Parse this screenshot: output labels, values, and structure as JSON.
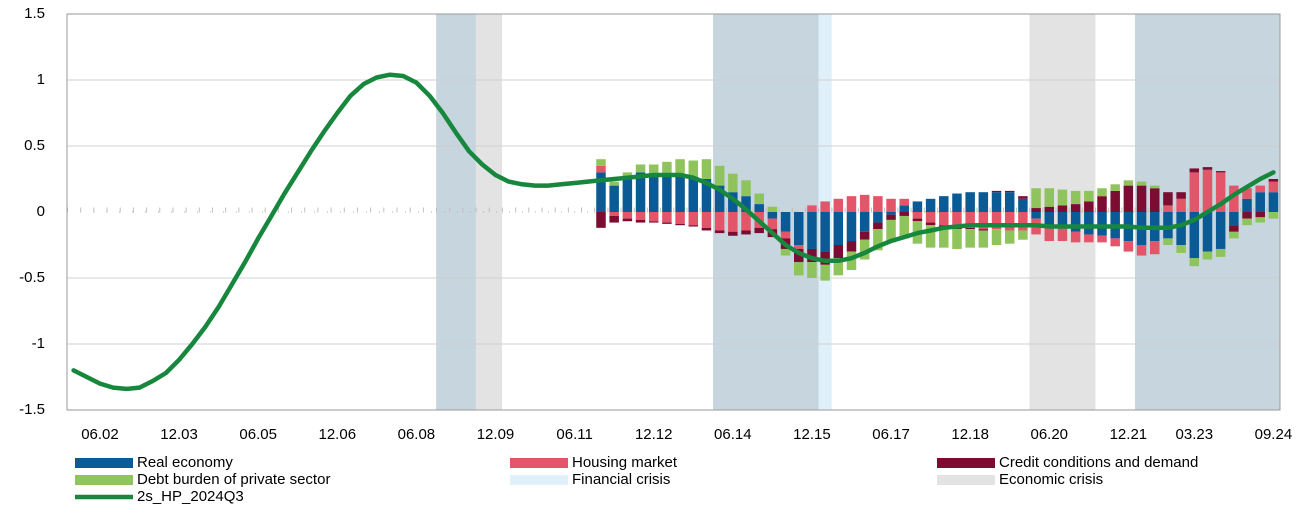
{
  "chart_data": {
    "type": "stacked-bar-line",
    "categories": [
      null,
      null,
      "06.02",
      null,
      null,
      null,
      null,
      null,
      "12.03",
      null,
      null,
      null,
      null,
      null,
      "06.05",
      null,
      null,
      null,
      null,
      null,
      "12.06",
      null,
      null,
      null,
      null,
      null,
      "06.08",
      null,
      null,
      null,
      null,
      null,
      "12.09",
      null,
      null,
      null,
      null,
      null,
      "06.11",
      null,
      null,
      null,
      null,
      null,
      "12.12",
      null,
      null,
      null,
      null,
      null,
      "06.14",
      null,
      null,
      null,
      null,
      null,
      "12.15",
      null,
      null,
      null,
      null,
      null,
      "06.17",
      null,
      null,
      null,
      null,
      null,
      "12.18",
      null,
      null,
      null,
      null,
      null,
      "06.20",
      null,
      null,
      null,
      null,
      null,
      "12.21",
      null,
      null,
      null,
      null,
      "03.23",
      null,
      null,
      null,
      null,
      null,
      "09.24"
    ],
    "ylim": [
      -1.5,
      1.5
    ],
    "yticks": [
      -1.5,
      -1,
      -0.5,
      0,
      0.5,
      1,
      1.5
    ],
    "grid": true,
    "legend": "bottom",
    "shades": [
      {
        "name": "Economic crisis",
        "color": "#e3e3e3",
        "spans": [
          [
            28,
            32
          ],
          [
            49,
            56
          ],
          [
            73,
            77
          ],
          [
            81,
            91
          ]
        ]
      },
      {
        "name": "Financial crisis",
        "color": "#dff0fa",
        "spans": [
          [
            28,
            30
          ],
          [
            49,
            57
          ],
          [
            81,
            91
          ]
        ]
      }
    ],
    "series": [
      {
        "name": "Real economy",
        "color": "#0a5a96",
        "values": [
          null,
          null,
          null,
          null,
          null,
          null,
          null,
          null,
          null,
          null,
          null,
          null,
          null,
          null,
          null,
          null,
          null,
          null,
          null,
          null,
          null,
          null,
          null,
          null,
          null,
          null,
          null,
          null,
          null,
          null,
          null,
          null,
          null,
          null,
          null,
          null,
          null,
          null,
          null,
          null,
          0.3,
          0.2,
          0.25,
          0.3,
          0.28,
          0.28,
          0.28,
          0.25,
          0.25,
          0.2,
          0.15,
          0.12,
          0.06,
          -0.05,
          -0.15,
          -0.25,
          -0.28,
          -0.3,
          -0.25,
          -0.22,
          -0.15,
          -0.08,
          -0.02,
          0.05,
          0.08,
          0.1,
          0.12,
          0.14,
          0.15,
          0.15,
          0.15,
          0.15,
          0.1,
          -0.05,
          -0.1,
          -0.12,
          -0.15,
          -0.17,
          -0.18,
          -0.2,
          -0.22,
          -0.25,
          -0.22,
          -0.2,
          -0.25,
          -0.35,
          -0.3,
          -0.28,
          -0.1,
          0.1,
          0.15,
          0.15
        ]
      },
      {
        "name": "Housing market",
        "color": "#e3566a",
        "values": [
          null,
          null,
          null,
          null,
          null,
          null,
          null,
          null,
          null,
          null,
          null,
          null,
          null,
          null,
          null,
          null,
          null,
          null,
          null,
          null,
          null,
          null,
          null,
          null,
          null,
          null,
          null,
          null,
          null,
          null,
          null,
          null,
          null,
          null,
          null,
          null,
          null,
          null,
          null,
          null,
          0.05,
          -0.03,
          -0.05,
          -0.06,
          -0.07,
          -0.08,
          -0.09,
          -0.1,
          -0.12,
          -0.14,
          -0.15,
          -0.14,
          -0.12,
          -0.08,
          -0.05,
          -0.03,
          0.05,
          0.08,
          0.1,
          0.12,
          0.13,
          0.12,
          0.1,
          0.05,
          -0.05,
          -0.08,
          -0.1,
          -0.12,
          -0.12,
          -0.13,
          -0.13,
          -0.14,
          -0.14,
          -0.12,
          -0.12,
          -0.1,
          -0.08,
          -0.06,
          -0.05,
          -0.06,
          -0.08,
          -0.08,
          -0.1,
          0.05,
          0.1,
          0.3,
          0.32,
          0.3,
          0.2,
          0.08,
          0.05,
          0.08
        ]
      },
      {
        "name": "Credit conditions and demand",
        "color": "#7b0c32",
        "values": [
          null,
          null,
          null,
          null,
          null,
          null,
          null,
          null,
          null,
          null,
          null,
          null,
          null,
          null,
          null,
          null,
          null,
          null,
          null,
          null,
          null,
          null,
          null,
          null,
          null,
          null,
          null,
          null,
          null,
          null,
          null,
          null,
          null,
          null,
          null,
          null,
          null,
          null,
          null,
          null,
          -0.12,
          -0.05,
          -0.02,
          -0.02,
          -0.01,
          -0.01,
          -0.01,
          -0.01,
          -0.02,
          -0.02,
          -0.03,
          -0.03,
          -0.04,
          -0.06,
          -0.08,
          -0.1,
          -0.1,
          -0.1,
          -0.1,
          -0.08,
          -0.06,
          -0.05,
          -0.04,
          -0.03,
          -0.02,
          -0.02,
          -0.01,
          -0.01,
          -0.01,
          -0.01,
          0.01,
          0.01,
          0.02,
          0.03,
          0.04,
          0.05,
          0.06,
          0.08,
          0.12,
          0.16,
          0.2,
          0.2,
          0.18,
          0.1,
          0.05,
          0.03,
          0.02,
          0.01,
          -0.05,
          -0.05,
          -0.04,
          0.02
        ]
      },
      {
        "name": "Debt burden of private sector",
        "color": "#8fc45c",
        "values": [
          null,
          null,
          null,
          null,
          null,
          null,
          null,
          null,
          null,
          null,
          null,
          null,
          null,
          null,
          null,
          null,
          null,
          null,
          null,
          null,
          null,
          null,
          null,
          null,
          null,
          null,
          null,
          null,
          null,
          null,
          null,
          null,
          null,
          null,
          null,
          null,
          null,
          null,
          null,
          null,
          0.05,
          0.03,
          0.05,
          0.06,
          0.08,
          0.1,
          0.12,
          0.14,
          0.15,
          0.15,
          0.14,
          0.12,
          0.08,
          0.04,
          -0.05,
          -0.1,
          -0.12,
          -0.12,
          -0.13,
          -0.14,
          -0.15,
          -0.16,
          -0.17,
          -0.17,
          -0.17,
          -0.17,
          -0.16,
          -0.15,
          -0.14,
          -0.13,
          -0.12,
          -0.1,
          -0.07,
          0.15,
          0.14,
          0.12,
          0.1,
          0.08,
          0.06,
          0.05,
          0.04,
          0.03,
          0.02,
          -0.05,
          -0.06,
          -0.06,
          -0.06,
          -0.06,
          -0.05,
          -0.05,
          -0.04,
          -0.05
        ]
      },
      {
        "name": "2s_HP_2024Q3",
        "color": "#17873d",
        "kind": "line",
        "values": [
          -1.2,
          -1.25,
          -1.3,
          -1.33,
          -1.34,
          -1.33,
          -1.28,
          -1.22,
          -1.12,
          -1.0,
          -0.87,
          -0.72,
          -0.55,
          -0.38,
          -0.2,
          -0.03,
          0.14,
          0.3,
          0.46,
          0.61,
          0.75,
          0.88,
          0.97,
          1.02,
          1.04,
          1.03,
          0.98,
          0.88,
          0.75,
          0.6,
          0.46,
          0.36,
          0.28,
          0.23,
          0.21,
          0.2,
          0.2,
          0.21,
          0.22,
          0.23,
          0.24,
          0.25,
          0.26,
          0.27,
          0.28,
          0.28,
          0.28,
          0.26,
          0.22,
          0.17,
          0.1,
          0.02,
          -0.07,
          -0.16,
          -0.25,
          -0.31,
          -0.35,
          -0.37,
          -0.37,
          -0.35,
          -0.31,
          -0.26,
          -0.22,
          -0.19,
          -0.16,
          -0.14,
          -0.12,
          -0.11,
          -0.1,
          -0.1,
          -0.1,
          -0.1,
          -0.1,
          -0.1,
          -0.11,
          -0.11,
          -0.11,
          -0.11,
          -0.11,
          -0.11,
          -0.11,
          -0.12,
          -0.12,
          -0.12,
          -0.1,
          -0.06,
          0.0,
          0.06,
          0.13,
          0.19,
          0.25,
          0.3
        ]
      }
    ]
  }
}
